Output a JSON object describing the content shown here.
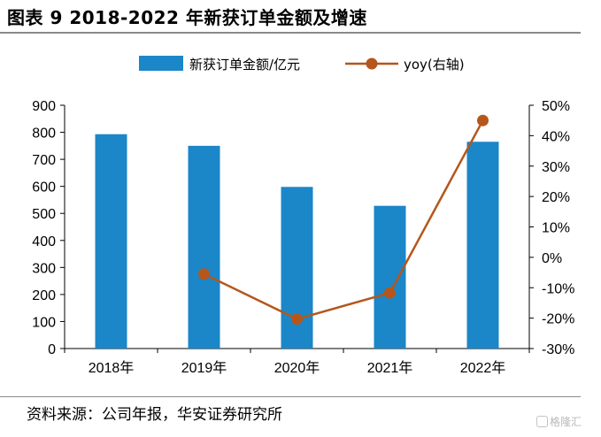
{
  "title": "图表 9 2018-2022 年新获订单金额及增速",
  "source": "资料来源：公司年报，华安证券研究所",
  "watermark": "格隆汇",
  "colors": {
    "bar": "#1b87c8",
    "line": "#b5561c"
  },
  "chart_data": {
    "type": "bar",
    "categories": [
      "2018年",
      "2019年",
      "2020年",
      "2021年",
      "2022年"
    ],
    "series": [
      {
        "name": "新获订单金额/亿元",
        "type": "bar",
        "axis": "left",
        "values": [
          793,
          750,
          598,
          528,
          765
        ]
      },
      {
        "name": "yoy(右轴)",
        "type": "line",
        "axis": "right",
        "values": [
          null,
          -5.5,
          -20.3,
          -11.7,
          45.0
        ]
      }
    ],
    "ylim_left": [
      0,
      900
    ],
    "yticks_left": [
      "0",
      "100",
      "200",
      "300",
      "400",
      "500",
      "600",
      "700",
      "800",
      "900"
    ],
    "ylim_right": [
      -30,
      50
    ],
    "yticks_right": [
      "-30%",
      "-20%",
      "-10%",
      "0%",
      "10%",
      "20%",
      "30%",
      "40%",
      "50%"
    ],
    "grid": false,
    "legend_position": "top"
  }
}
